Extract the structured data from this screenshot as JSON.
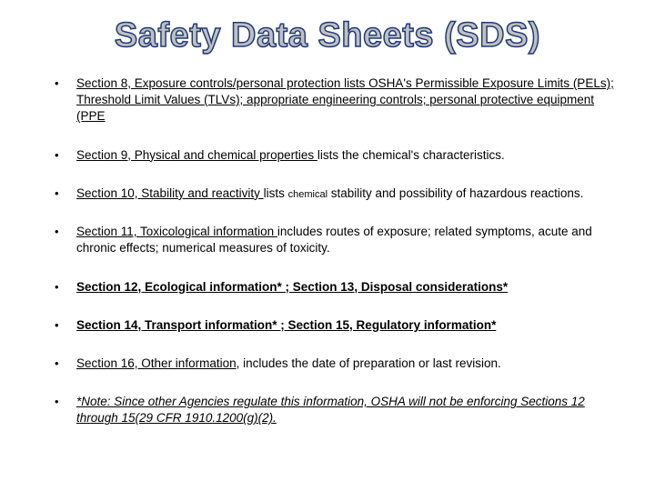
{
  "title": "Safety Data Sheets (SDS)",
  "title_color_fill": "#c0c0c0",
  "title_color_stroke": "#1f3a7a",
  "title_fontsize": 38,
  "background_color": "#ffffff",
  "text_color": "#000000",
  "body_fontsize": 13.5,
  "items": [
    {
      "lead": "Section 8, Exposure controls/personal protection ",
      "rest": "lists OSHA's Permissible Exposure Limits (PELs); Threshold Limit Values (TLVs); appropriate engineering controls; personal protective equipment (PPE",
      "lead_underline": true,
      "rest_underline": true,
      "bold": false,
      "italic": false
    },
    {
      "lead": "Section 9, Physical and chemical properties ",
      "rest": "lists the chemical's characteristics.",
      "lead_underline": true,
      "rest_underline": false,
      "bold": false,
      "italic": false
    },
    {
      "lead": "Section 10, Stability and reactivity ",
      "rest_prefix": "lists ",
      "small": "chemical",
      "rest_suffix": " stability and possibility of hazardous reactions.",
      "lead_underline": true,
      "rest_underline": false,
      "bold": false,
      "italic": false
    },
    {
      "lead": "Section 11, Toxicological information ",
      "rest": "includes routes of exposure; related symptoms, acute and chronic effects; numerical measures of toxicity.",
      "lead_underline": true,
      "rest_underline": false,
      "bold": false,
      "italic": false
    },
    {
      "lead": "Section 12, Ecological information*  ; Section 13, Disposal considerations*",
      "rest": "",
      "lead_underline": true,
      "rest_underline": false,
      "bold": true,
      "italic": false
    },
    {
      "lead": "Section 14, Transport information*  ; Section 15, Regulatory information*",
      "rest": "",
      "lead_underline": true,
      "rest_underline": false,
      "bold": true,
      "italic": false
    },
    {
      "lead": "Section 16, Other information",
      "rest": ", includes the date of preparation or last revision.",
      "lead_underline": true,
      "rest_underline": false,
      "bold": false,
      "italic": false
    },
    {
      "lead": "*Note: Since other Agencies regulate this information, OSHA will not be enforcing Sections 12 through 15(29 CFR 1910.1200(g)(2).",
      "rest": "",
      "lead_underline": true,
      "rest_underline": false,
      "bold": false,
      "italic": true
    }
  ]
}
